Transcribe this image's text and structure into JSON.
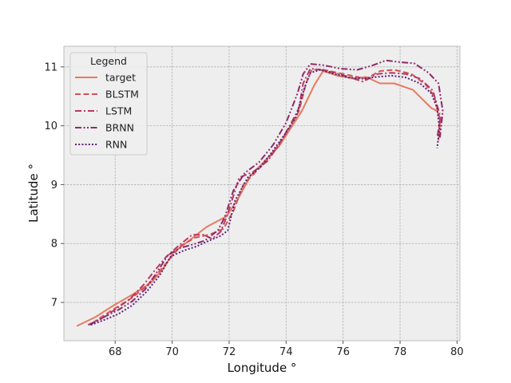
{
  "chart_data": {
    "type": "line",
    "xlabel": "Longitude °",
    "ylabel": "Latitude °",
    "xlim": [
      66.2,
      80.1
    ],
    "ylim": [
      6.35,
      11.35
    ],
    "xticks": [
      68,
      70,
      72,
      74,
      76,
      78,
      80
    ],
    "yticks": [
      7,
      8,
      9,
      10,
      11
    ],
    "grid": true,
    "legend": {
      "title": "Legend",
      "placement": "top-left"
    },
    "series": [
      {
        "name": "target",
        "color": "#e8795f",
        "dash": "solid",
        "x": [
          66.65,
          67.3,
          67.95,
          68.6,
          69.25,
          69.65,
          70.05,
          70.6,
          71.2,
          71.9,
          72.3,
          72.75,
          73.3,
          73.75,
          74.15,
          74.55,
          74.8,
          75.0,
          75.3,
          75.8,
          76.4,
          76.8,
          77.3,
          77.8,
          78.45,
          79.1,
          79.3,
          79.42,
          79.35
        ],
        "y": [
          6.6,
          6.75,
          6.95,
          7.13,
          7.33,
          7.55,
          7.85,
          8.05,
          8.28,
          8.46,
          8.75,
          9.15,
          9.43,
          9.65,
          9.95,
          10.25,
          10.5,
          10.7,
          10.93,
          10.85,
          10.8,
          10.83,
          10.72,
          10.72,
          10.61,
          10.3,
          10.25,
          10.1,
          9.75
        ]
      },
      {
        "name": "BLSTM",
        "color": "#d5505a",
        "dash": "dashed",
        "x": [
          67.2,
          67.6,
          68.1,
          68.6,
          69.1,
          69.5,
          69.9,
          70.3,
          70.8,
          71.3,
          71.8,
          72.15,
          72.5,
          72.9,
          73.3,
          73.7,
          74.1,
          74.45,
          74.7,
          74.9,
          75.25,
          75.8,
          76.3,
          76.8,
          77.3,
          77.8,
          78.4,
          78.9,
          79.2,
          79.4,
          79.32
        ],
        "y": [
          6.65,
          6.78,
          6.93,
          7.08,
          7.28,
          7.5,
          7.73,
          7.96,
          8.1,
          8.15,
          8.25,
          8.55,
          9.0,
          9.2,
          9.4,
          9.65,
          9.95,
          10.25,
          10.72,
          10.95,
          10.96,
          10.9,
          10.85,
          10.8,
          10.93,
          10.95,
          10.88,
          10.7,
          10.5,
          10.1,
          9.8
        ]
      },
      {
        "name": "LSTM",
        "color": "#b83760",
        "dash": "dashdot",
        "x": [
          67.05,
          67.5,
          68.0,
          68.5,
          69.0,
          69.4,
          69.8,
          70.2,
          70.7,
          71.1,
          71.4,
          71.7,
          71.95,
          72.35,
          72.85,
          73.35,
          73.75,
          74.15,
          74.45,
          74.6,
          74.85,
          75.2,
          75.7,
          76.2,
          76.7,
          77.2,
          77.7,
          78.2,
          78.7,
          79.15,
          79.42,
          79.3
        ],
        "y": [
          6.62,
          6.72,
          6.88,
          7.05,
          7.3,
          7.55,
          7.78,
          7.95,
          8.15,
          8.15,
          8.08,
          8.2,
          8.5,
          9.12,
          9.22,
          9.4,
          9.68,
          10.02,
          10.3,
          10.72,
          10.97,
          10.95,
          10.9,
          10.83,
          10.75,
          10.88,
          10.9,
          10.88,
          10.8,
          10.6,
          10.15,
          9.8
        ]
      },
      {
        "name": "BRNN",
        "color": "#8e2a6a",
        "dash": "dashdotdot",
        "x": [
          67.1,
          67.6,
          68.1,
          68.6,
          69.05,
          69.45,
          69.85,
          70.25,
          70.7,
          71.15,
          71.6,
          71.85,
          72.15,
          72.55,
          73.05,
          73.55,
          74.0,
          74.4,
          74.6,
          74.85,
          75.3,
          75.9,
          76.5,
          77.0,
          77.5,
          78.0,
          78.5,
          79.0,
          79.35,
          79.5,
          79.4
        ],
        "y": [
          6.62,
          6.75,
          6.87,
          7.02,
          7.22,
          7.5,
          7.8,
          7.92,
          7.98,
          8.05,
          8.22,
          8.45,
          8.9,
          9.2,
          9.38,
          9.68,
          10.05,
          10.55,
          10.88,
          11.05,
          11.03,
          10.97,
          10.95,
          11.02,
          11.11,
          11.08,
          11.06,
          10.9,
          10.72,
          10.25,
          9.8
        ]
      },
      {
        "name": "RNN",
        "color": "#5a2277",
        "dash": "dotted",
        "x": [
          67.15,
          67.6,
          68.1,
          68.6,
          69.1,
          69.55,
          69.95,
          70.4,
          70.85,
          71.3,
          71.7,
          71.95,
          72.2,
          72.65,
          73.1,
          73.5,
          73.95,
          74.35,
          74.65,
          74.85,
          75.2,
          75.7,
          76.2,
          76.7,
          77.2,
          77.7,
          78.2,
          78.7,
          79.1,
          79.3,
          79.38,
          79.3
        ],
        "y": [
          6.62,
          6.7,
          6.8,
          6.95,
          7.18,
          7.45,
          7.78,
          7.88,
          7.95,
          8.05,
          8.13,
          8.22,
          8.72,
          9.12,
          9.3,
          9.55,
          9.85,
          10.15,
          10.65,
          10.9,
          10.95,
          10.88,
          10.82,
          10.8,
          10.83,
          10.85,
          10.82,
          10.72,
          10.55,
          10.3,
          9.95,
          9.62
        ]
      }
    ]
  }
}
